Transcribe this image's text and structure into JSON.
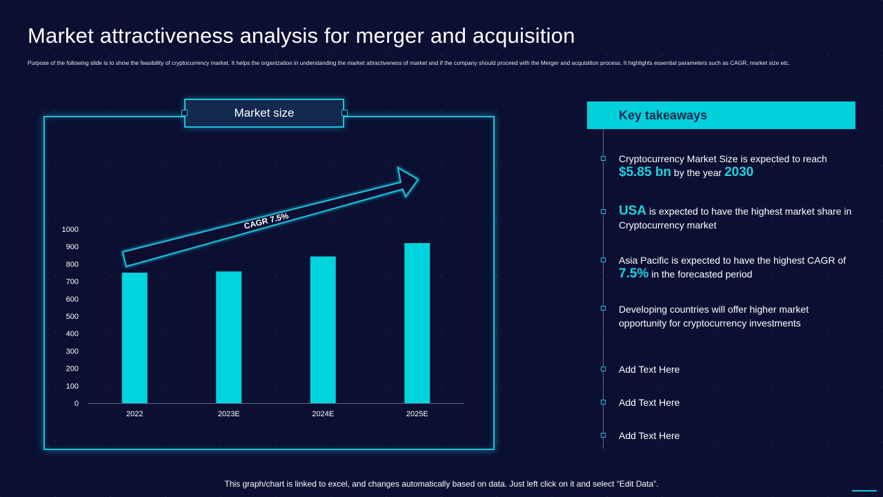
{
  "title": "Market attractiveness analysis for merger and acquisition",
  "subtitle": "Purpose of the following slide is to show the feasibility of cryptocurrency market. It helps the organization in understanding the market attractiveness of market and if the company should proceed with the Merger and acquisition process. It highlights essential parameters such as CAGR, market size etc.",
  "chart_label": "Market size",
  "chart_data": {
    "type": "bar",
    "title": "Market size",
    "categories": [
      "2022",
      "2023E",
      "2024E",
      "2025E"
    ],
    "values": [
      750,
      757,
      843,
      920
    ],
    "ylim": [
      0,
      1000
    ],
    "yticks": [
      0,
      100,
      200,
      300,
      400,
      500,
      600,
      700,
      800,
      900,
      1000
    ],
    "xlabel": "",
    "ylabel": "",
    "annotation": "CAGR 7.5%",
    "bar_color": "#00d4dd",
    "grid": false
  },
  "takeaways": {
    "header": "Key takeaways",
    "items": [
      {
        "pre": "Cryptocurrency  Market  Size is expected to reach",
        "hl1": "$5.85 bn",
        "mid": " by the year ",
        "hl2": "2030"
      },
      {
        "hl": "USA",
        "text": " is expected to have the highest market  share in Cryptocurrency  market"
      },
      {
        "pre": "Asia Pacific is expected to have the highest CAGR of ",
        "hl": "7.5%",
        "post": " in the forecasted period"
      },
      {
        "text": "Developing countries  will offer higher market opportunity  for cryptocurrency  investments"
      },
      {
        "text": "Add Text Here"
      },
      {
        "text": "Add Text Here"
      },
      {
        "text": "Add Text Here"
      }
    ]
  },
  "footer": "This graph/chart is linked to excel,  and changes automatically based on data. Just left click on it and select “Edit Data”.",
  "colors": {
    "background": "#0b1033",
    "accent": "#00d1db",
    "frame": "#1fc3dc",
    "header_text": "#13294f"
  }
}
